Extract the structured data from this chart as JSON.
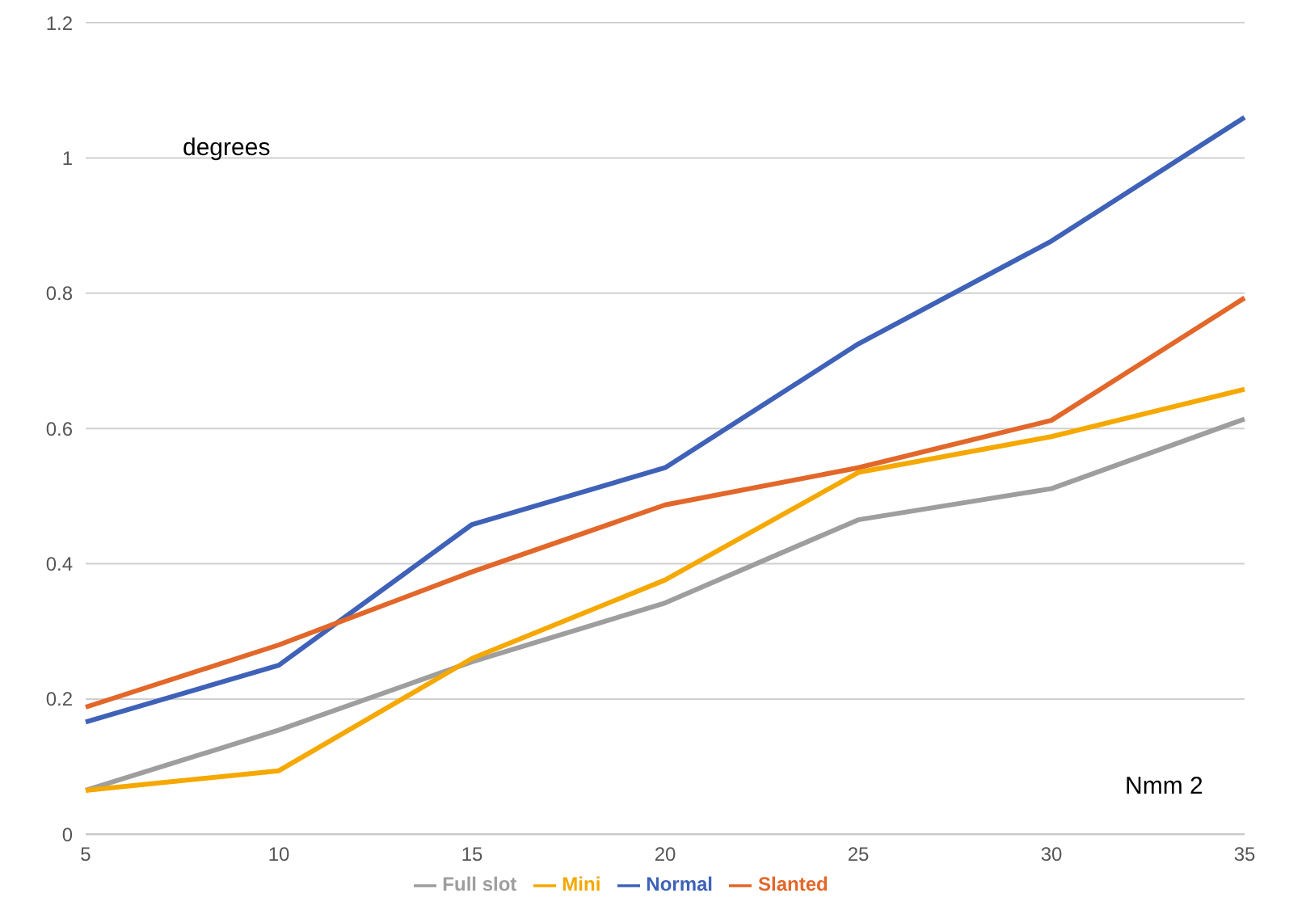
{
  "chart_data": {
    "type": "line",
    "xlabel": "Nmm 2",
    "ylabel": "degrees",
    "categories": [
      "5",
      "10",
      "15",
      "20",
      "25",
      "30",
      "35"
    ],
    "series": [
      {
        "name": "Normal",
        "color": "#3f62b8",
        "values": [
          0.166,
          0.25,
          0.458,
          0.542,
          0.725,
          0.877,
          1.06
        ]
      },
      {
        "name": "Slanted",
        "color": "#e2672a",
        "values": [
          0.188,
          0.28,
          0.388,
          0.487,
          0.542,
          0.612,
          0.793
        ]
      },
      {
        "name": "Full slot",
        "color": "#9e9e9e",
        "values": [
          0.065,
          0.154,
          0.255,
          0.342,
          0.465,
          0.511,
          0.614
        ]
      },
      {
        "name": "Mini",
        "color": "#f5a800",
        "values": [
          0.065,
          0.094,
          0.26,
          0.376,
          0.535,
          0.588,
          0.658
        ]
      }
    ],
    "ylim": [
      0,
      1.2
    ],
    "yticks": [
      0,
      0.2,
      0.4,
      0.6,
      0.8,
      1,
      1.2
    ],
    "grid": "y",
    "legend": "bottom",
    "marker": "none",
    "line_style": "solid"
  }
}
